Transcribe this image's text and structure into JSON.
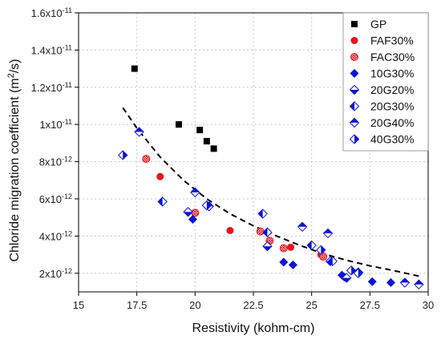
{
  "chart_data": {
    "type": "scatter",
    "xlabel": "Resistivity (kohm-cm)",
    "ylabel_main": "Chloride migration coefficient (m",
    "ylabel_sup": "2",
    "ylabel_end": "/s)",
    "xlim": [
      15,
      30
    ],
    "ylim": [
      1e-12,
      1.6e-11
    ],
    "x_ticks": [
      15,
      17.5,
      20,
      22.5,
      25,
      27.5,
      30
    ],
    "x_tick_labels": [
      "15",
      "17.5",
      "20",
      "22.5",
      "25",
      "27.5",
      "30"
    ],
    "y_ticks": [
      {
        "value": 2e-12,
        "mantissa": "2x10",
        "exp": "-12"
      },
      {
        "value": 4e-12,
        "mantissa": "4x10",
        "exp": "-12"
      },
      {
        "value": 6e-12,
        "mantissa": "6x10",
        "exp": "-12"
      },
      {
        "value": 8e-12,
        "mantissa": "8x10",
        "exp": "-12"
      },
      {
        "value": 1e-11,
        "mantissa": "1x10",
        "exp": "-11"
      },
      {
        "value": 1.2e-11,
        "mantissa": "1.2x10",
        "exp": "-11"
      },
      {
        "value": 1.4e-11,
        "mantissa": "1.4x10",
        "exp": "-11"
      },
      {
        "value": 1.6e-11,
        "mantissa": "1.6x10",
        "exp": "-11"
      }
    ],
    "grid": true,
    "legend_position": "top-right",
    "series": [
      {
        "name": "GP",
        "marker": "square",
        "color": "#000000",
        "points": [
          [
            17.4,
            1.3e-11
          ],
          [
            19.3,
            1e-11
          ],
          [
            20.2,
            9.7e-12
          ],
          [
            20.5,
            9.1e-12
          ],
          [
            20.8,
            8.7e-12
          ]
        ]
      },
      {
        "name": "FAF30%",
        "marker": "circle",
        "color": "#e8141b",
        "points": [
          [
            18.5,
            7.2e-12
          ],
          [
            21.5,
            4.3e-12
          ],
          [
            24.1,
            3.4e-12
          ],
          [
            25.4,
            3e-12
          ]
        ]
      },
      {
        "name": "FAC30%",
        "marker": "circle-hatched",
        "color": "#e8141b",
        "points": [
          [
            17.9,
            8.15e-12
          ],
          [
            20.0,
            5.25e-12
          ],
          [
            22.8,
            4.25e-12
          ],
          [
            23.2,
            3.75e-12
          ],
          [
            23.8,
            3.35e-12
          ],
          [
            25.5,
            2.9e-12
          ]
        ]
      },
      {
        "name": "10G30%",
        "marker": "diamond",
        "color": "#0a14d6",
        "points": [
          [
            19.9,
            4.9e-12
          ],
          [
            23.8,
            2.6e-12
          ],
          [
            24.2,
            2.45e-12
          ],
          [
            26.3,
            1.9e-12
          ],
          [
            26.4,
            1.8e-12
          ],
          [
            27.6,
            1.55e-12
          ],
          [
            28.4,
            1.5e-12
          ]
        ]
      },
      {
        "name": "20G20%",
        "marker": "diamond-half-bottom",
        "color": "#0a14d6",
        "points": [
          [
            19.7,
            5.3e-12
          ],
          [
            23.1,
            3.45e-12
          ],
          [
            25.8,
            2.65e-12
          ],
          [
            26.5,
            1.75e-12
          ]
        ]
      },
      {
        "name": "20G30%",
        "marker": "diamond-half-left",
        "color": "#0a14d6",
        "points": [
          [
            18.6,
            5.85e-12
          ],
          [
            22.9,
            5.2e-12
          ],
          [
            23.1,
            4.2e-12
          ],
          [
            25.0,
            3.5e-12
          ],
          [
            25.9,
            2.65e-12
          ],
          [
            27.0,
            2.05e-12
          ]
        ]
      },
      {
        "name": "20G40%",
        "marker": "diamond-half-top",
        "color": "#0a14d6",
        "points": [
          [
            17.6,
            9.6e-12
          ],
          [
            20.0,
            6.35e-12
          ],
          [
            20.6,
            5.6e-12
          ],
          [
            24.6,
            4.5e-12
          ],
          [
            25.7,
            4.15e-12
          ],
          [
            29.0,
            1.5e-12
          ],
          [
            29.6,
            1.4e-12
          ]
        ]
      },
      {
        "name": "40G30%",
        "marker": "diamond-half-right",
        "color": "#0a14d6",
        "points": [
          [
            16.9,
            8.35e-12
          ],
          [
            20.5,
            5.65e-12
          ],
          [
            25.4,
            3.25e-12
          ],
          [
            26.7,
            2.15e-12
          ],
          [
            27.0,
            2e-12
          ]
        ]
      }
    ],
    "trendline": {
      "style": "dashed",
      "color": "#000000",
      "points": [
        [
          16.9,
          1.09e-11
        ],
        [
          17.5,
          9.8e-12
        ],
        [
          18.5,
          8.25e-12
        ],
        [
          19.5,
          7e-12
        ],
        [
          20.5,
          6e-12
        ],
        [
          21.5,
          5.2e-12
        ],
        [
          22.5,
          4.55e-12
        ],
        [
          23.5,
          4e-12
        ],
        [
          24.5,
          3.5e-12
        ],
        [
          25.5,
          3.05e-12
        ],
        [
          26.5,
          2.7e-12
        ],
        [
          27.5,
          2.4e-12
        ],
        [
          28.5,
          2.15e-12
        ],
        [
          29.6,
          1.85e-12
        ]
      ]
    }
  }
}
